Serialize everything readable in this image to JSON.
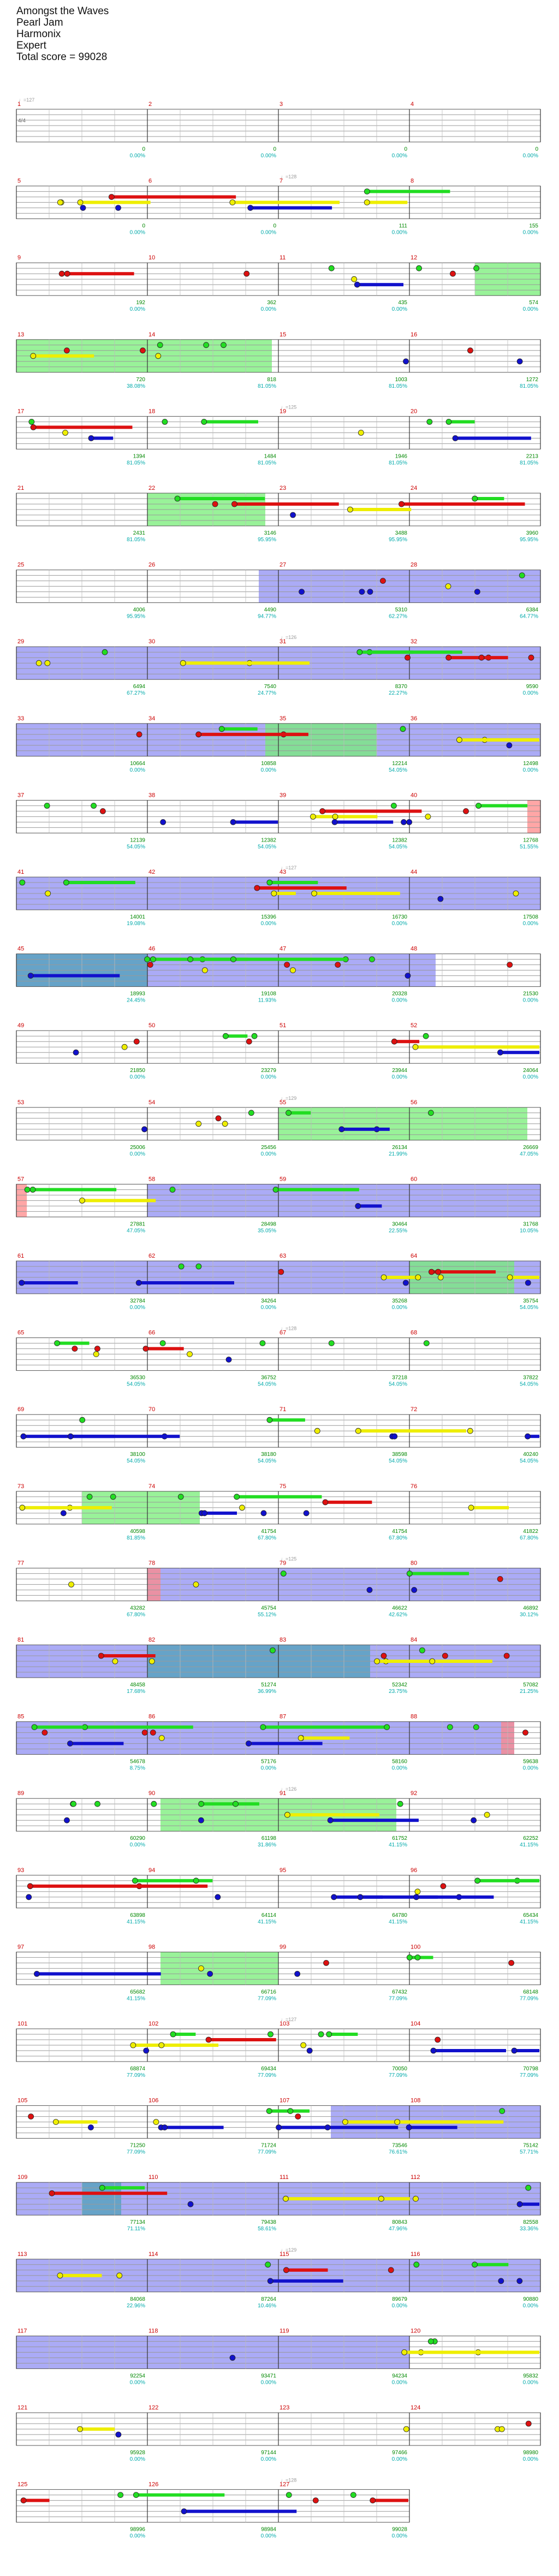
{
  "song": {
    "title": "Amongst the Waves",
    "artist": "Pearl Jam",
    "instrument": "Harmonix",
    "difficulty": "Expert",
    "total_score": "Total score = 99028"
  },
  "colors": {
    "green": "#22dd22",
    "red": "#dd1111",
    "yellow": "#eeee00",
    "blue": "#1111cc",
    "orange": "#ee8800",
    "overdrive": "#77ee77",
    "solo": "#6666ee",
    "measure_number": "#cc0000",
    "score": "#008800",
    "percent": "#00aaaa",
    "tempo": "#999999"
  },
  "time_signature": "4/4",
  "tempo_markers": [
    "♩=127",
    "♩=128",
    "♩=126",
    "♩=129",
    "♩=125"
  ],
  "rows": [
    {
      "m": [
        1,
        2,
        3,
        4
      ],
      "scores": [
        "0",
        "0",
        "0",
        "0"
      ],
      "pcts": [
        "0.00%",
        "0.00%",
        "0.00%",
        "0.00%"
      ],
      "tempo": "♩=127"
    },
    {
      "m": [
        5,
        6,
        7,
        8
      ],
      "scores": [
        "0",
        "0",
        "111",
        "155"
      ],
      "pcts": [
        "0.00%",
        "0.00%",
        "0.00%",
        "0.00%"
      ]
    },
    {
      "m": [
        9,
        10,
        11,
        12
      ],
      "scores": [
        "192",
        "362",
        "435",
        "574"
      ],
      "pcts": [
        "0.00%",
        "0.00%",
        "0.00%",
        "0.00%"
      ]
    },
    {
      "m": [
        13,
        14,
        15,
        16
      ],
      "scores": [
        "720",
        "818",
        "1003",
        "1272"
      ],
      "pcts": [
        "38.08%",
        "81.05%",
        "81.05%",
        "81.05%"
      ]
    },
    {
      "m": [
        17,
        18,
        19,
        20
      ],
      "scores": [
        "1394",
        "1484",
        "1946",
        "2213"
      ],
      "pcts": [
        "81.05%",
        "81.05%",
        "81.05%",
        "81.05%"
      ]
    },
    {
      "m": [
        21,
        22,
        23,
        24
      ],
      "scores": [
        "2431",
        "3146",
        "3488",
        "3960"
      ],
      "pcts": [
        "81.05%",
        "95.95%",
        "95.95%",
        "95.95%"
      ]
    },
    {
      "m": [
        25,
        26,
        27,
        28
      ],
      "scores": [
        "4006",
        "4490",
        "5310",
        "6384"
      ],
      "pcts": [
        "95.95%",
        "94.77%",
        "62.27%",
        "64.77%"
      ]
    },
    {
      "m": [
        29,
        30,
        31,
        32
      ],
      "scores": [
        "6494",
        "7540",
        "8370",
        "9590"
      ],
      "pcts": [
        "67.27%",
        "24.77%",
        "22.27%",
        "0.00%"
      ]
    },
    {
      "m": [
        33,
        34,
        35,
        36
      ],
      "scores": [
        "10664",
        "10858",
        "12214",
        "12498"
      ],
      "pcts": [
        "0.00%",
        "0.00%",
        "54.05%",
        "0.00%"
      ]
    },
    {
      "m": [
        37,
        38,
        39,
        40
      ],
      "scores": [
        "12139",
        "12382",
        "12382",
        "12768"
      ],
      "pcts": [
        "54.05%",
        "54.05%",
        "54.05%",
        "51.55%"
      ]
    },
    {
      "m": [
        41,
        42,
        43,
        44
      ],
      "scores": [
        "14001",
        "15396",
        "16730",
        "17508"
      ],
      "pcts": [
        "19.08%",
        "0.00%",
        "0.00%",
        "0.00%"
      ]
    },
    {
      "m": [
        45,
        46,
        47,
        48
      ],
      "scores": [
        "18993",
        "19108",
        "20328",
        "21530"
      ],
      "pcts": [
        "24.45%",
        "11.93%",
        "0.00%",
        "0.00%"
      ]
    },
    {
      "m": [
        49,
        50,
        51,
        52
      ],
      "scores": [
        "21850",
        "23279",
        "23944",
        "24064"
      ],
      "pcts": [
        "0.00%",
        "0.00%",
        "0.00%",
        "0.00%"
      ]
    },
    {
      "m": [
        53,
        54,
        55,
        56
      ],
      "scores": [
        "25006",
        "25456",
        "26134",
        "26669"
      ],
      "pcts": [
        "0.00%",
        "0.00%",
        "21.99%",
        "47.05%"
      ]
    },
    {
      "m": [
        57,
        58,
        59,
        60
      ],
      "scores": [
        "27881",
        "28498",
        "30464",
        "31768"
      ],
      "pcts": [
        "47.05%",
        "35.05%",
        "22.55%",
        "10.05%"
      ]
    },
    {
      "m": [
        61,
        62,
        63,
        64
      ],
      "scores": [
        "32784",
        "34264",
        "35268",
        "35754"
      ],
      "pcts": [
        "0.00%",
        "0.00%",
        "0.00%",
        "54.05%"
      ]
    },
    {
      "m": [
        65,
        66,
        67,
        68
      ],
      "scores": [
        "36530",
        "36752",
        "37218",
        "37822"
      ],
      "pcts": [
        "54.05%",
        "54.05%",
        "54.05%",
        "54.05%"
      ]
    },
    {
      "m": [
        69,
        70,
        71,
        72
      ],
      "scores": [
        "38100",
        "38180",
        "38598",
        "40240"
      ],
      "pcts": [
        "54.05%",
        "54.05%",
        "54.05%",
        "54.05%"
      ]
    },
    {
      "m": [
        73,
        74,
        75,
        76
      ],
      "scores": [
        "40598",
        "41754",
        "41754",
        "41822"
      ],
      "pcts": [
        "81.85%",
        "67.80%",
        "67.80%",
        "67.80%"
      ]
    },
    {
      "m": [
        77,
        78,
        79,
        80
      ],
      "scores": [
        "43282",
        "45754",
        "46622",
        "46892"
      ],
      "pcts": [
        "67.80%",
        "55.12%",
        "42.62%",
        "30.12%"
      ]
    },
    {
      "m": [
        81,
        82,
        83,
        84
      ],
      "scores": [
        "48458",
        "51274",
        "52342",
        "57082"
      ],
      "pcts": [
        "17.68%",
        "36.99%",
        "23.75%",
        "21.25%"
      ]
    },
    {
      "m": [
        85,
        86,
        87,
        88
      ],
      "scores": [
        "54678",
        "57176",
        "58160",
        "59638"
      ],
      "pcts": [
        "8.75%",
        "0.00%",
        "0.00%",
        "0.00%"
      ]
    },
    {
      "m": [
        89,
        90,
        91,
        92
      ],
      "scores": [
        "60290",
        "61198",
        "61752",
        "62252"
      ],
      "pcts": [
        "0.00%",
        "31.86%",
        "41.15%",
        "41.15%"
      ]
    },
    {
      "m": [
        93,
        94,
        95,
        96
      ],
      "scores": [
        "63898",
        "64114",
        "64780",
        "65434"
      ],
      "pcts": [
        "41.15%",
        "41.15%",
        "41.15%",
        "41.15%"
      ]
    },
    {
      "m": [
        97,
        98,
        99,
        100
      ],
      "scores": [
        "65682",
        "66716",
        "67432",
        "68148"
      ],
      "pcts": [
        "41.15%",
        "77.09%",
        "77.09%",
        "77.09%"
      ]
    },
    {
      "m": [
        101,
        102,
        103,
        104
      ],
      "scores": [
        "68874",
        "69434",
        "70050",
        "70798"
      ],
      "pcts": [
        "77.09%",
        "77.09%",
        "77.09%",
        "77.09%"
      ]
    },
    {
      "m": [
        105,
        106,
        107,
        108
      ],
      "scores": [
        "71250",
        "71724",
        "73546",
        "75142"
      ],
      "pcts": [
        "77.09%",
        "77.09%",
        "76.61%",
        "57.71%"
      ]
    },
    {
      "m": [
        109,
        110,
        111,
        112
      ],
      "scores": [
        "77134",
        "79438",
        "80843",
        "82558"
      ],
      "pcts": [
        "71.11%",
        "58.61%",
        "47.96%",
        "33.36%"
      ]
    },
    {
      "m": [
        113,
        114,
        115,
        116
      ],
      "scores": [
        "84068",
        "87264",
        "89679",
        "90880"
      ],
      "pcts": [
        "22.96%",
        "10.46%",
        "0.00%",
        "0.00%"
      ]
    },
    {
      "m": [
        117,
        118,
        119,
        120
      ],
      "scores": [
        "92254",
        "93471",
        "94234",
        "95832"
      ],
      "pcts": [
        "0.00%",
        "0.00%",
        "0.00%",
        "0.00%"
      ]
    },
    {
      "m": [
        121,
        122,
        123,
        124
      ],
      "scores": [
        "95928",
        "97144",
        "97466",
        "98980"
      ],
      "pcts": [
        "0.00%",
        "0.00%",
        "0.00%",
        "0.00%"
      ]
    },
    {
      "m": [
        125,
        126,
        127
      ],
      "scores": [
        "98996",
        "98984",
        "99028"
      ],
      "pcts": [
        "0.00%",
        "0.00%",
        "0.00%"
      ]
    }
  ]
}
